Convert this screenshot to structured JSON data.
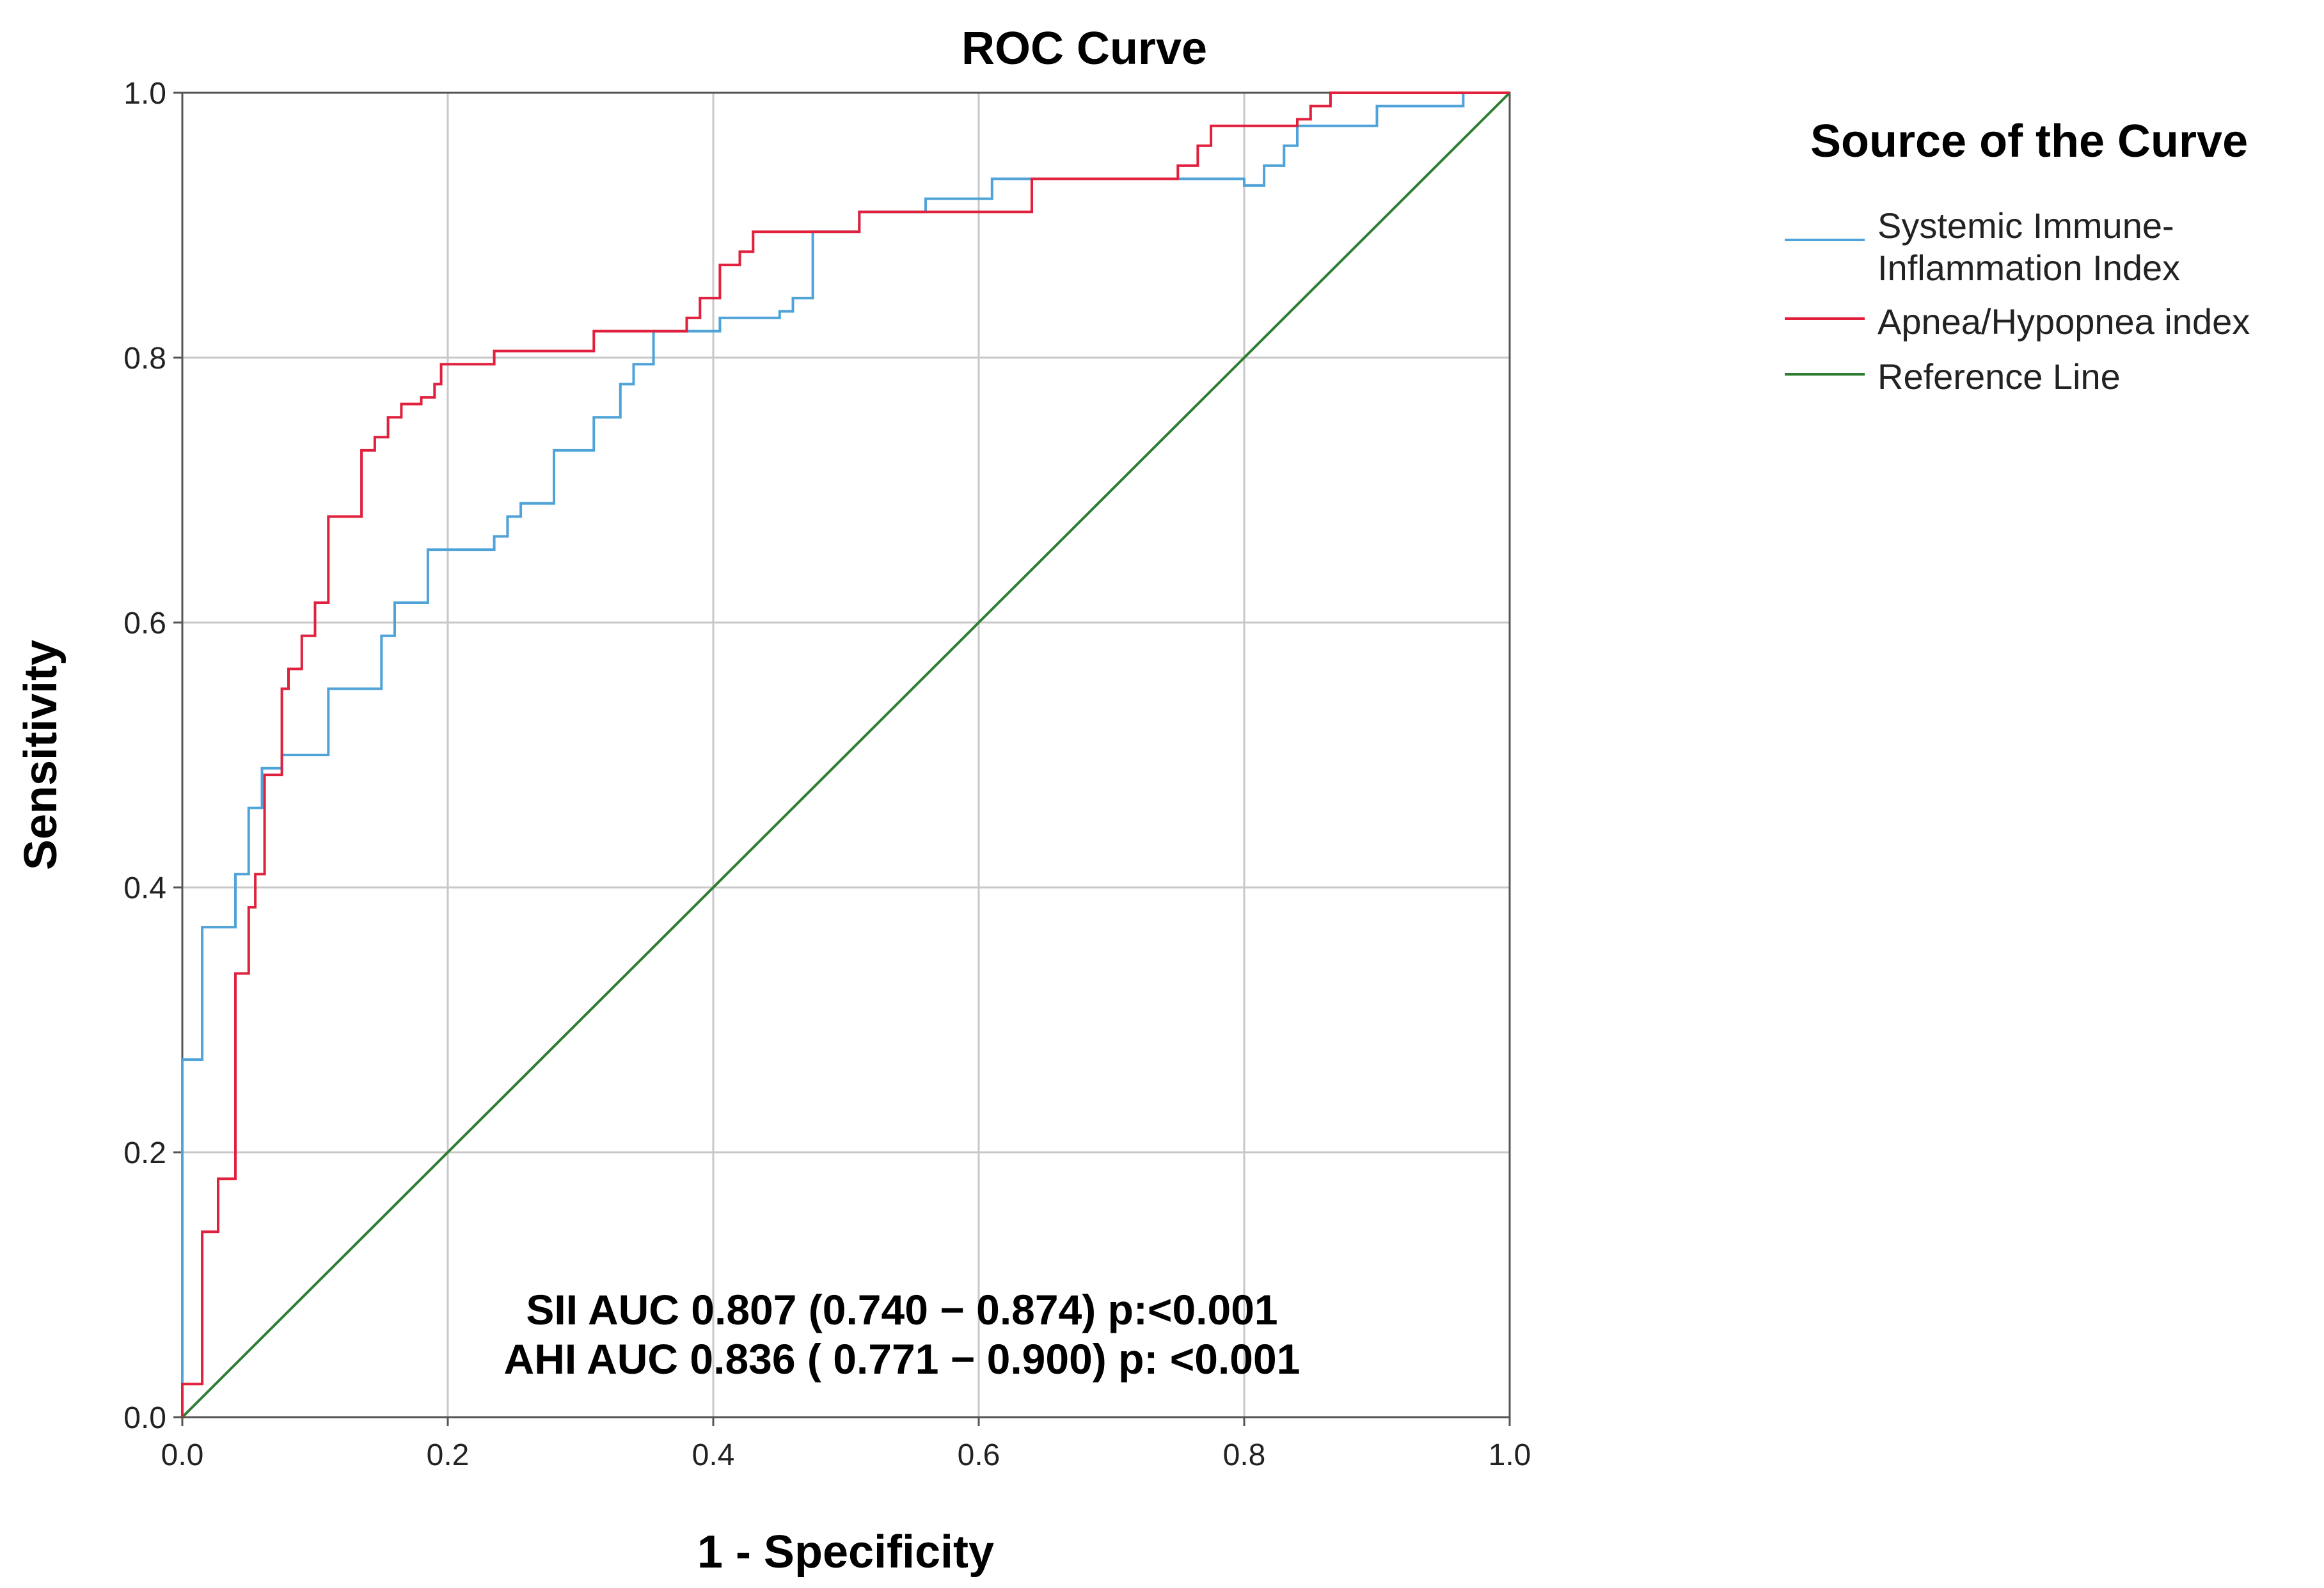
{
  "chart_data": {
    "type": "line",
    "title": "ROC Curve",
    "xlabel": "1 - Specificity",
    "ylabel": "Sensitivity",
    "xlim": [
      0.0,
      1.0
    ],
    "ylim": [
      0.0,
      1.0
    ],
    "x_ticks": [
      "0.0",
      "0.2",
      "0.4",
      "0.6",
      "0.8",
      "1.0"
    ],
    "y_ticks": [
      "0.0",
      "0.2",
      "0.4",
      "0.6",
      "0.8",
      "1.0"
    ],
    "grid": true,
    "legend": {
      "title": "Source of the Curve",
      "placement": "right-top",
      "entries": [
        {
          "lines": [
            "Systemic Immune-",
            "Inflammation Index"
          ],
          "color": "#4fa3d8"
        },
        {
          "lines": [
            "Apnea/Hypopnea index"
          ],
          "color": "#e0203c"
        },
        {
          "lines": [
            "Reference Line"
          ],
          "color": "#2e7d32"
        }
      ]
    },
    "annotations": [
      "SII AUC 0.807 (0.740 − 0.874) p:<0.001",
      "AHI AUC 0.836 ( 0.771 − 0.900) p: <0.001"
    ],
    "series": [
      {
        "name": "Systemic Immune-Inflammation Index",
        "color": "#4fa3d8",
        "points": [
          [
            0,
            0
          ],
          [
            0,
            0.27
          ],
          [
            0.015,
            0.27
          ],
          [
            0.015,
            0.37
          ],
          [
            0.04,
            0.37
          ],
          [
            0.04,
            0.41
          ],
          [
            0.05,
            0.41
          ],
          [
            0.05,
            0.46
          ],
          [
            0.06,
            0.46
          ],
          [
            0.06,
            0.49
          ],
          [
            0.075,
            0.49
          ],
          [
            0.075,
            0.5
          ],
          [
            0.11,
            0.5
          ],
          [
            0.11,
            0.55
          ],
          [
            0.15,
            0.55
          ],
          [
            0.15,
            0.59
          ],
          [
            0.16,
            0.59
          ],
          [
            0.16,
            0.615
          ],
          [
            0.185,
            0.615
          ],
          [
            0.185,
            0.655
          ],
          [
            0.235,
            0.655
          ],
          [
            0.235,
            0.665
          ],
          [
            0.245,
            0.665
          ],
          [
            0.245,
            0.68
          ],
          [
            0.255,
            0.68
          ],
          [
            0.255,
            0.69
          ],
          [
            0.28,
            0.69
          ],
          [
            0.28,
            0.73
          ],
          [
            0.31,
            0.73
          ],
          [
            0.31,
            0.755
          ],
          [
            0.33,
            0.755
          ],
          [
            0.33,
            0.78
          ],
          [
            0.34,
            0.78
          ],
          [
            0.34,
            0.795
          ],
          [
            0.355,
            0.795
          ],
          [
            0.355,
            0.82
          ],
          [
            0.405,
            0.82
          ],
          [
            0.405,
            0.83
          ],
          [
            0.45,
            0.83
          ],
          [
            0.45,
            0.835
          ],
          [
            0.46,
            0.835
          ],
          [
            0.46,
            0.845
          ],
          [
            0.475,
            0.845
          ],
          [
            0.475,
            0.895
          ],
          [
            0.51,
            0.895
          ],
          [
            0.51,
            0.91
          ],
          [
            0.56,
            0.91
          ],
          [
            0.56,
            0.92
          ],
          [
            0.61,
            0.92
          ],
          [
            0.61,
            0.935
          ],
          [
            0.8,
            0.935
          ],
          [
            0.8,
            0.93
          ],
          [
            0.815,
            0.93
          ],
          [
            0.815,
            0.945
          ],
          [
            0.83,
            0.945
          ],
          [
            0.83,
            0.96
          ],
          [
            0.84,
            0.96
          ],
          [
            0.84,
            0.975
          ],
          [
            0.9,
            0.975
          ],
          [
            0.9,
            0.99
          ],
          [
            0.965,
            0.99
          ],
          [
            0.965,
            1.0
          ],
          [
            1.0,
            1.0
          ]
        ]
      },
      {
        "name": "Apnea/Hypopnea index",
        "color": "#e0203c",
        "points": [
          [
            0,
            0
          ],
          [
            0,
            0.025
          ],
          [
            0.015,
            0.025
          ],
          [
            0.015,
            0.14
          ],
          [
            0.027,
            0.14
          ],
          [
            0.027,
            0.18
          ],
          [
            0.04,
            0.18
          ],
          [
            0.04,
            0.335
          ],
          [
            0.05,
            0.335
          ],
          [
            0.05,
            0.385
          ],
          [
            0.055,
            0.385
          ],
          [
            0.055,
            0.41
          ],
          [
            0.062,
            0.41
          ],
          [
            0.062,
            0.485
          ],
          [
            0.075,
            0.485
          ],
          [
            0.075,
            0.55
          ],
          [
            0.08,
            0.55
          ],
          [
            0.08,
            0.565
          ],
          [
            0.09,
            0.565
          ],
          [
            0.09,
            0.59
          ],
          [
            0.1,
            0.59
          ],
          [
            0.1,
            0.615
          ],
          [
            0.11,
            0.615
          ],
          [
            0.11,
            0.68
          ],
          [
            0.135,
            0.68
          ],
          [
            0.135,
            0.73
          ],
          [
            0.145,
            0.73
          ],
          [
            0.145,
            0.74
          ],
          [
            0.155,
            0.74
          ],
          [
            0.155,
            0.755
          ],
          [
            0.165,
            0.755
          ],
          [
            0.165,
            0.765
          ],
          [
            0.18,
            0.765
          ],
          [
            0.18,
            0.77
          ],
          [
            0.19,
            0.77
          ],
          [
            0.19,
            0.78
          ],
          [
            0.195,
            0.78
          ],
          [
            0.195,
            0.795
          ],
          [
            0.235,
            0.795
          ],
          [
            0.235,
            0.805
          ],
          [
            0.31,
            0.805
          ],
          [
            0.31,
            0.82
          ],
          [
            0.38,
            0.82
          ],
          [
            0.38,
            0.83
          ],
          [
            0.39,
            0.83
          ],
          [
            0.39,
            0.845
          ],
          [
            0.405,
            0.845
          ],
          [
            0.405,
            0.87
          ],
          [
            0.42,
            0.87
          ],
          [
            0.42,
            0.88
          ],
          [
            0.43,
            0.88
          ],
          [
            0.43,
            0.895
          ],
          [
            0.51,
            0.895
          ],
          [
            0.51,
            0.91
          ],
          [
            0.64,
            0.91
          ],
          [
            0.64,
            0.935
          ],
          [
            0.75,
            0.935
          ],
          [
            0.75,
            0.945
          ],
          [
            0.765,
            0.945
          ],
          [
            0.765,
            0.96
          ],
          [
            0.775,
            0.96
          ],
          [
            0.775,
            0.975
          ],
          [
            0.84,
            0.975
          ],
          [
            0.84,
            0.98
          ],
          [
            0.85,
            0.98
          ],
          [
            0.85,
            0.99
          ],
          [
            0.865,
            0.99
          ],
          [
            0.865,
            1.0
          ],
          [
            1.0,
            1.0
          ]
        ]
      },
      {
        "name": "Reference Line",
        "color": "#2e7d32",
        "points": [
          [
            0,
            0
          ],
          [
            1,
            1
          ]
        ]
      }
    ]
  }
}
